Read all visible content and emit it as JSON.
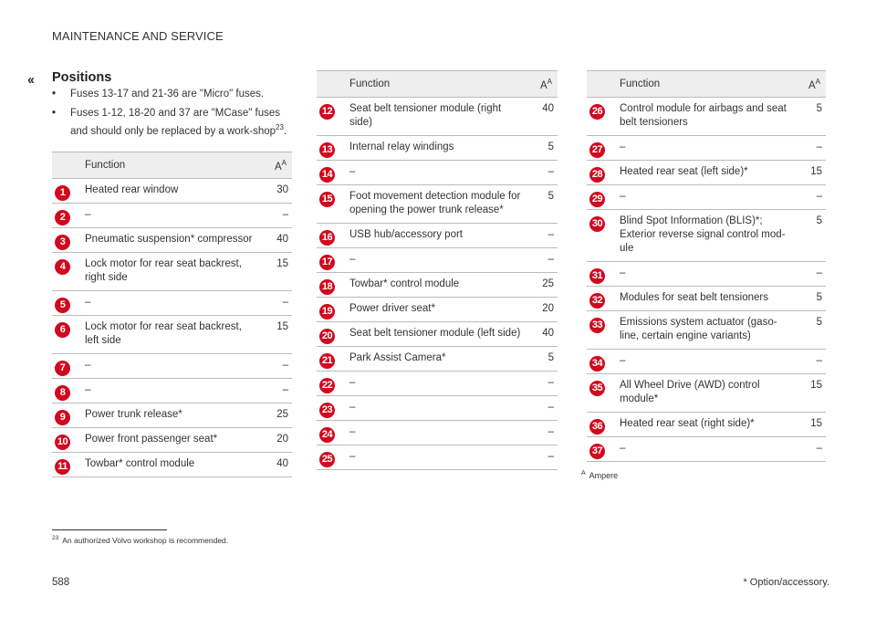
{
  "header": {
    "section": "MAINTENANCE AND SERVICE",
    "back_symbol": "‹‹"
  },
  "title": "Positions",
  "bullets": [
    {
      "text": "Fuses 13-17 and 21-36 are \"Micro\" fuses."
    },
    {
      "text": "Fuses 1-12, 18-20 and 37 are \"MCase\" fuses and should only be replaced by a work-shop",
      "ref": "23",
      "tail": "."
    }
  ],
  "table_headers": {
    "function": "Function",
    "amp": "A",
    "amp_ref": "A"
  },
  "tables": [
    {
      "rows": [
        {
          "num": "1",
          "function": "Heated rear window",
          "amp": "30"
        },
        {
          "num": "2",
          "function": "–",
          "amp": "–"
        },
        {
          "num": "3",
          "function": "Pneumatic suspension* compressor",
          "amp": "40"
        },
        {
          "num": "4",
          "function": "Lock motor for rear seat backrest, right side",
          "amp": "15"
        },
        {
          "num": "5",
          "function": "–",
          "amp": "–"
        },
        {
          "num": "6",
          "function": "Lock motor for rear seat backrest, left side",
          "amp": "15"
        },
        {
          "num": "7",
          "function": "–",
          "amp": "–"
        },
        {
          "num": "8",
          "function": "–",
          "amp": "–"
        },
        {
          "num": "9",
          "function": "Power trunk release*",
          "amp": "25"
        },
        {
          "num": "10",
          "function": "Power front passenger seat*",
          "amp": "20"
        },
        {
          "num": "11",
          "function": "Towbar* control module",
          "amp": "40"
        }
      ]
    },
    {
      "rows": [
        {
          "num": "12",
          "function": "Seat belt tensioner module (right side)",
          "amp": "40"
        },
        {
          "num": "13",
          "function": "Internal relay windings",
          "amp": "5"
        },
        {
          "num": "14",
          "function": "–",
          "amp": "–"
        },
        {
          "num": "15",
          "function": "Foot movement detection module for opening the power trunk release*",
          "amp": "5"
        },
        {
          "num": "16",
          "function": "USB hub/accessory port",
          "amp": "–"
        },
        {
          "num": "17",
          "function": "–",
          "amp": "–"
        },
        {
          "num": "18",
          "function": "Towbar* control module",
          "amp": "25"
        },
        {
          "num": "19",
          "function": "Power driver seat*",
          "amp": "20"
        },
        {
          "num": "20",
          "function": "Seat belt tensioner module (left side)",
          "amp": "40"
        },
        {
          "num": "21",
          "function": "Park Assist Camera*",
          "amp": "5"
        },
        {
          "num": "22",
          "function": "–",
          "amp": "–"
        },
        {
          "num": "23",
          "function": "–",
          "amp": "–"
        },
        {
          "num": "24",
          "function": "–",
          "amp": "–"
        },
        {
          "num": "25",
          "function": "–",
          "amp": "–"
        }
      ]
    },
    {
      "rows": [
        {
          "num": "26",
          "function": "Control module for airbags and seat belt tensioners",
          "amp": "5"
        },
        {
          "num": "27",
          "function": "–",
          "amp": "–"
        },
        {
          "num": "28",
          "function": "Heated rear seat (left side)*",
          "amp": "15"
        },
        {
          "num": "29",
          "function": "–",
          "amp": "–"
        },
        {
          "num": "30",
          "function": "Blind Spot Information (BLIS)*; Exterior reverse signal control mod-ule",
          "amp": "5"
        },
        {
          "num": "31",
          "function": "–",
          "amp": "–"
        },
        {
          "num": "32",
          "function": "Modules for seat belt tensioners",
          "amp": "5"
        },
        {
          "num": "33",
          "function": "Emissions system actuator (gaso-line, certain engine variants)",
          "amp": "5"
        },
        {
          "num": "34",
          "function": "–",
          "amp": "–"
        },
        {
          "num": "35",
          "function": "All Wheel Drive (AWD) control module*",
          "amp": "15"
        },
        {
          "num": "36",
          "function": "Heated rear seat (right side)*",
          "amp": "15"
        },
        {
          "num": "37",
          "function": "–",
          "amp": "–"
        }
      ]
    }
  ],
  "footnote_a": {
    "mark": "A",
    "text": "Ampere"
  },
  "footnote_23": {
    "mark": "23",
    "text": "An authorized Volvo workshop is recommended."
  },
  "page_number": "588",
  "option_note": "* Option/accessory.",
  "colors": {
    "badge": "#d1081e",
    "header_bg": "#eeeeee",
    "rule": "#bbbbbb"
  }
}
